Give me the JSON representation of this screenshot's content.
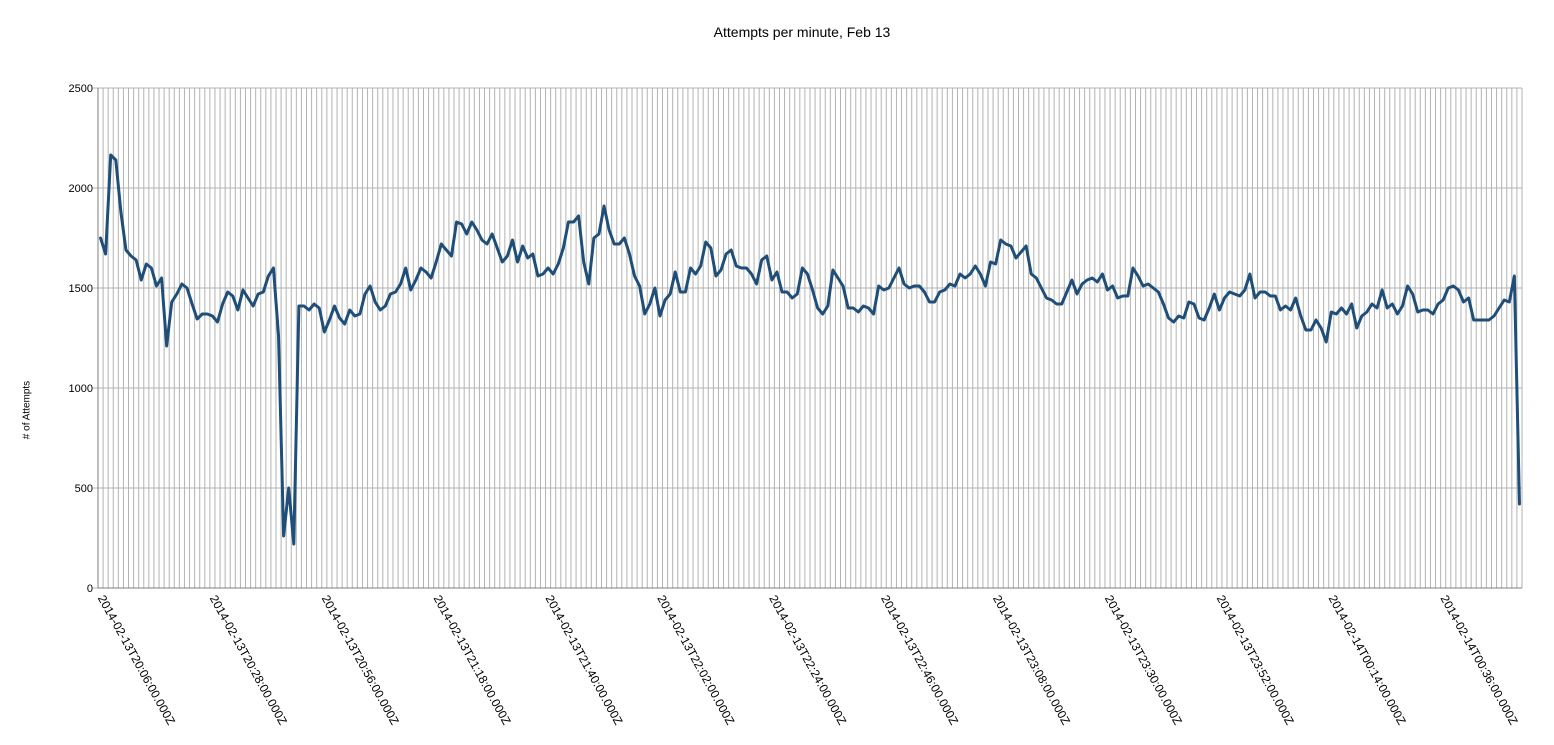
{
  "chart_data": {
    "type": "line",
    "title": "Attempts per minute, Feb 13",
    "xlabel": "",
    "ylabel": "# of Attempts",
    "ylim": [
      0,
      2500
    ],
    "yticks": [
      0,
      500,
      1000,
      1500,
      2000,
      2500
    ],
    "grid": true,
    "legend": "none",
    "colors": {
      "line": "#1f4e79",
      "grid": "#b3b3b3",
      "axis": "#7f7f7f"
    },
    "x_start": "2014-02-13T20:06:00.000Z",
    "x_interval": "1 minute",
    "x_labels": [
      "2014-02-13T20:06:00.000Z",
      "2014-02-13T20:28:00.000Z",
      "2014-02-13T20:56:00.000Z",
      "2014-02-13T21:18:00.000Z",
      "2014-02-13T21:40:00.000Z",
      "2014-02-13T22:02:00.000Z",
      "2014-02-13T22:24:00.000Z",
      "2014-02-13T22:46:00.000Z",
      "2014-02-13T23:08:00.000Z",
      "2014-02-13T23:30:00.000Z",
      "2014-02-13T23:52:00.000Z",
      "2014-02-14T00:14:00.000Z",
      "2014-02-14T00:36:00.000Z"
    ],
    "series": [
      {
        "values": [
          1750,
          1670,
          2165,
          2140,
          1880,
          1690,
          1660,
          1640,
          1540,
          1620,
          1600,
          1510,
          1550,
          1210,
          1430,
          1470,
          1520,
          1500,
          1420,
          1345,
          1370,
          1370,
          1360,
          1330,
          1420,
          1480,
          1460,
          1390,
          1490,
          1450,
          1410,
          1470,
          1480,
          1560,
          1600,
          1260,
          260,
          500,
          220,
          1410,
          1410,
          1390,
          1420,
          1400,
          1280,
          1340,
          1410,
          1350,
          1320,
          1390,
          1360,
          1370,
          1470,
          1510,
          1430,
          1390,
          1410,
          1470,
          1480,
          1520,
          1600,
          1490,
          1540,
          1600,
          1580,
          1550,
          1630,
          1720,
          1690,
          1660,
          1830,
          1820,
          1770,
          1830,
          1790,
          1740,
          1720,
          1770,
          1700,
          1630,
          1660,
          1740,
          1630,
          1710,
          1650,
          1670,
          1560,
          1570,
          1600,
          1570,
          1620,
          1700,
          1830,
          1830,
          1860,
          1630,
          1520,
          1750,
          1770,
          1910,
          1790,
          1720,
          1720,
          1750,
          1670,
          1560,
          1510,
          1370,
          1420,
          1500,
          1360,
          1440,
          1470,
          1580,
          1480,
          1480,
          1600,
          1570,
          1610,
          1730,
          1700,
          1560,
          1590,
          1670,
          1690,
          1610,
          1600,
          1600,
          1570,
          1520,
          1640,
          1660,
          1540,
          1580,
          1480,
          1480,
          1450,
          1470,
          1600,
          1570,
          1490,
          1400,
          1370,
          1410,
          1590,
          1550,
          1510,
          1400,
          1400,
          1380,
          1410,
          1400,
          1370,
          1510,
          1490,
          1500,
          1550,
          1600,
          1520,
          1500,
          1510,
          1510,
          1480,
          1430,
          1430,
          1480,
          1490,
          1520,
          1510,
          1570,
          1550,
          1570,
          1610,
          1570,
          1510,
          1630,
          1620,
          1740,
          1720,
          1710,
          1650,
          1680,
          1710,
          1570,
          1550,
          1500,
          1450,
          1440,
          1420,
          1420,
          1480,
          1540,
          1470,
          1520,
          1540,
          1550,
          1530,
          1570,
          1490,
          1510,
          1450,
          1460,
          1460,
          1600,
          1560,
          1510,
          1520,
          1500,
          1480,
          1420,
          1350,
          1330,
          1360,
          1350,
          1430,
          1420,
          1350,
          1340,
          1400,
          1470,
          1390,
          1450,
          1480,
          1470,
          1460,
          1490,
          1570,
          1450,
          1480,
          1480,
          1460,
          1460,
          1390,
          1410,
          1390,
          1450,
          1360,
          1290,
          1290,
          1340,
          1300,
          1230,
          1380,
          1370,
          1400,
          1370,
          1420,
          1300,
          1360,
          1380,
          1420,
          1400,
          1490,
          1400,
          1420,
          1370,
          1410,
          1510,
          1470,
          1380,
          1390,
          1390,
          1370,
          1420,
          1440,
          1500,
          1510,
          1490,
          1430,
          1450,
          1340,
          1340,
          1340,
          1340,
          1360,
          1400,
          1440,
          1430,
          1560,
          420
        ]
      }
    ]
  }
}
